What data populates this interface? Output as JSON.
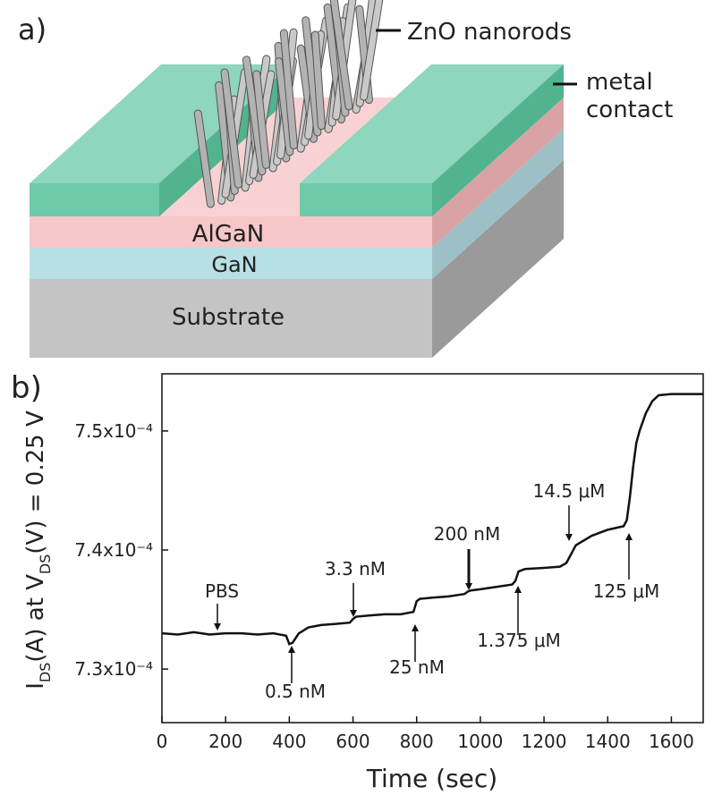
{
  "panel_a": {
    "label": "a)",
    "nanorods": "ZnO nanorods",
    "contact_line1": "metal",
    "contact_line2": "contact",
    "layer1": "AlGaN",
    "layer2": "GaN",
    "layer3": "Substrate"
  },
  "chart_data": {
    "type": "line",
    "panel_label": "b)",
    "x_label": "Time (sec)",
    "y_label": [
      "I",
      "DS",
      "(A) at V",
      "DS",
      "(V) = 0.25 V"
    ],
    "xlim": [
      0,
      1700
    ],
    "xticks": [
      0,
      200,
      400,
      600,
      800,
      1000,
      1200,
      1400,
      1600
    ],
    "ylim": [
      0.0007255,
      0.0007548
    ],
    "yticks": [
      {
        "value": 0.00073,
        "label": "7.3x10⁻⁴"
      },
      {
        "value": 0.00074,
        "label": "7.4x10⁻⁴"
      },
      {
        "value": 0.00075,
        "label": "7.5x10⁻⁴"
      }
    ],
    "annotations": [
      "PBS",
      "0.5 nM",
      "3.3 nM",
      "25 nM",
      "200 nM",
      "1.375 μM",
      "14.5 μM",
      "125 μM"
    ],
    "series": [
      {
        "color": "#111111",
        "x": [
          0,
          50,
          100,
          150,
          200,
          250,
          300,
          350,
          390,
          400,
          410,
          430,
          460,
          500,
          550,
          590,
          600,
          610,
          650,
          700,
          750,
          790,
          800,
          810,
          850,
          900,
          950,
          960,
          970,
          1000,
          1050,
          1100,
          1110,
          1120,
          1140,
          1200,
          1250,
          1270,
          1280,
          1290,
          1300,
          1350,
          1400,
          1450,
          1460,
          1470,
          1480,
          1490,
          1500,
          1520,
          1540,
          1560,
          1600,
          1650,
          1700
        ],
        "values": [
          0.000733,
          0.0007329,
          0.0007331,
          0.0007329,
          0.000733,
          0.000733,
          0.0007329,
          0.000733,
          0.0007328,
          0.0007321,
          0.0007322,
          0.000733,
          0.0007335,
          0.0007337,
          0.0007338,
          0.0007339,
          0.0007342,
          0.0007344,
          0.0007345,
          0.0007346,
          0.0007346,
          0.0007348,
          0.0007357,
          0.0007359,
          0.000736,
          0.0007361,
          0.0007363,
          0.0007365,
          0.0007366,
          0.0007367,
          0.0007369,
          0.0007371,
          0.0007374,
          0.0007382,
          0.0007384,
          0.0007385,
          0.0007386,
          0.0007389,
          0.0007394,
          0.0007399,
          0.0007404,
          0.0007412,
          0.0007417,
          0.000742,
          0.0007425,
          0.0007445,
          0.000747,
          0.000749,
          0.00075,
          0.0007515,
          0.0007525,
          0.000753,
          0.0007531,
          0.0007531,
          0.0007531
        ]
      }
    ]
  }
}
